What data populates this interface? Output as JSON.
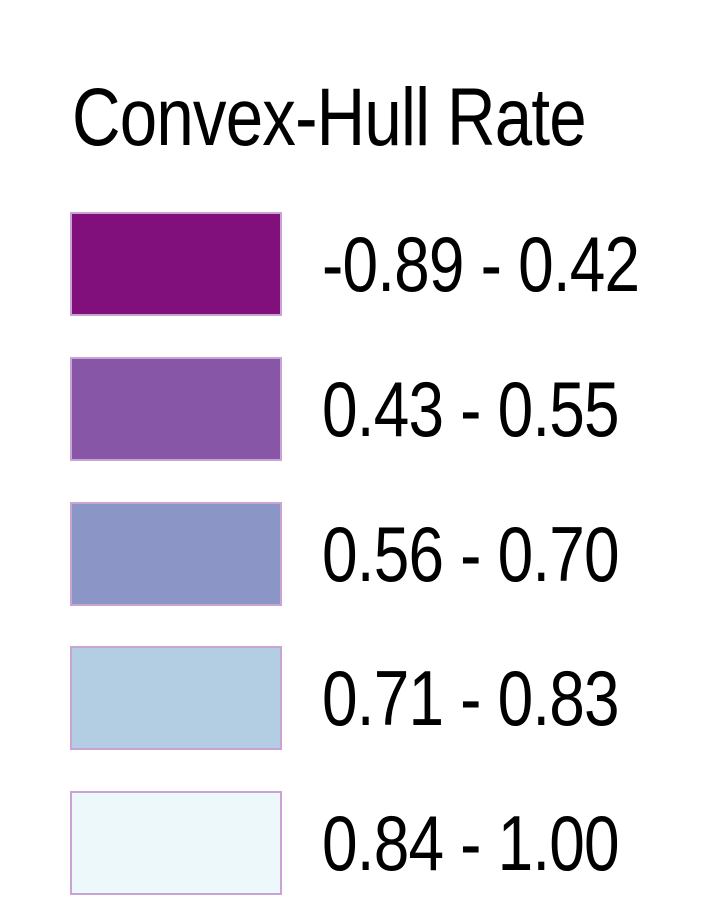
{
  "legend": {
    "title": "Convex-Hull Rate",
    "items": [
      {
        "label": "-0.89 - 0.42",
        "color": "#810f7c"
      },
      {
        "label": "0.43 - 0.55",
        "color": "#8856a7"
      },
      {
        "label": "0.56 - 0.70",
        "color": "#8c96c6"
      },
      {
        "label": "0.71 - 0.83",
        "color": "#b3cde3"
      },
      {
        "label": "0.84 - 1.00",
        "color": "#edf8fb"
      }
    ]
  }
}
